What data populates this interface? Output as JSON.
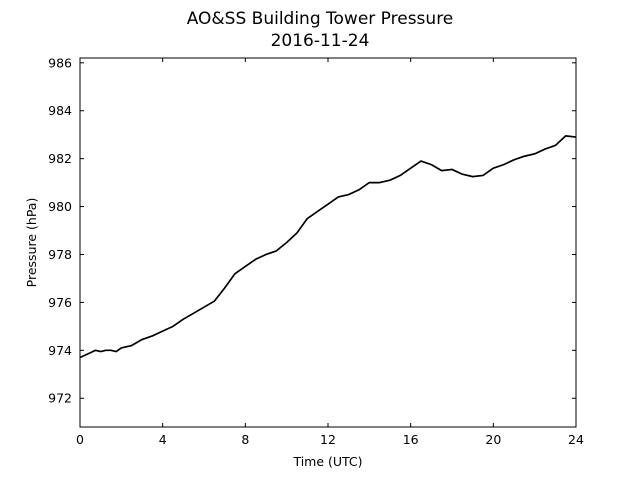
{
  "chart_data": {
    "type": "line",
    "title": "AO&SS Building Tower Pressure",
    "subtitle": "2016-11-24",
    "xlabel": "Time (UTC)",
    "ylabel": "Pressure (hPa)",
    "xlim": [
      0,
      24
    ],
    "ylim": [
      970.8,
      986.2
    ],
    "xticks": [
      0,
      4,
      8,
      12,
      16,
      20,
      24
    ],
    "yticks": [
      972,
      974,
      976,
      978,
      980,
      982,
      984,
      986
    ],
    "grid": false,
    "line_color": "#000000",
    "series": [
      {
        "x": [
          0,
          0.25,
          0.5,
          0.75,
          1.0,
          1.25,
          1.5,
          1.75,
          2.0,
          2.5,
          3.0,
          3.5,
          4.0,
          4.5,
          5.0,
          5.5,
          6.0,
          6.5,
          7.0,
          7.5,
          8.0,
          8.5,
          9.0,
          9.5,
          10.0,
          10.5,
          11.0,
          11.5,
          12.0,
          12.5,
          13.0,
          13.5,
          14.0,
          14.5,
          15.0,
          15.5,
          16.0,
          16.5,
          17.0,
          17.5,
          18.0,
          18.5,
          19.0,
          19.5,
          20.0,
          20.5,
          21.0,
          21.5,
          22.0,
          22.5,
          23.0,
          23.5,
          24.0
        ],
        "y": [
          973.7,
          973.8,
          973.9,
          974.0,
          973.95,
          974.0,
          974.0,
          973.95,
          974.1,
          974.2,
          974.45,
          974.6,
          974.8,
          975.0,
          975.3,
          975.55,
          975.8,
          976.05,
          976.6,
          977.2,
          977.5,
          977.8,
          978.0,
          978.15,
          978.5,
          978.9,
          979.5,
          979.8,
          980.1,
          980.4,
          980.5,
          980.7,
          981.0,
          981.0,
          981.1,
          981.3,
          981.6,
          981.9,
          981.75,
          981.5,
          981.55,
          981.35,
          981.25,
          981.3,
          981.6,
          981.75,
          981.95,
          982.1,
          982.2,
          982.4,
          982.55,
          982.95,
          982.9
        ]
      }
    ]
  }
}
